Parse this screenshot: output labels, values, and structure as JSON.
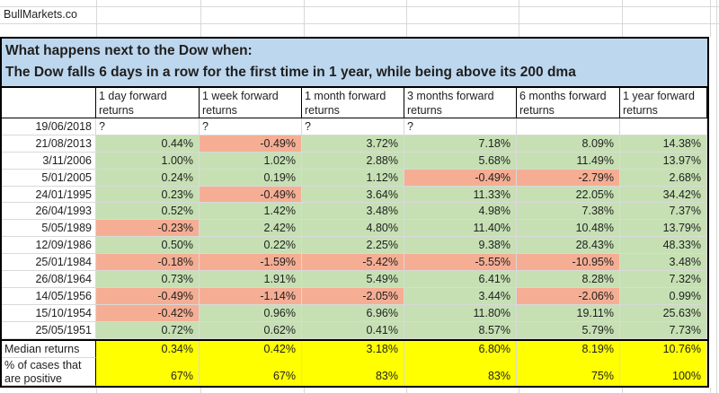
{
  "brand": "BullMarkets.co",
  "banner": {
    "line1": "What happens next to the Dow when:",
    "line2": "The Dow falls 6 days in a row for the first time in 1 year, while being above its 200 dma"
  },
  "table": {
    "columns": [
      "1 day forward returns",
      "1 week forward returns",
      "1 month forward returns",
      "3 months forward returns",
      "6 months forward returns",
      "1 year forward returns"
    ],
    "rows": [
      {
        "date": "19/06/2018",
        "values": [
          "?",
          "?",
          "?",
          "?",
          "",
          ""
        ]
      },
      {
        "date": "21/08/2013",
        "values": [
          "0.44%",
          "-0.49%",
          "3.72%",
          "7.18%",
          "8.09%",
          "14.38%"
        ]
      },
      {
        "date": "3/11/2006",
        "values": [
          "1.00%",
          "1.02%",
          "2.88%",
          "5.68%",
          "11.49%",
          "13.97%"
        ]
      },
      {
        "date": "5/01/2005",
        "values": [
          "0.24%",
          "0.19%",
          "1.12%",
          "-0.49%",
          "-2.79%",
          "2.68%"
        ]
      },
      {
        "date": "24/01/1995",
        "values": [
          "0.23%",
          "-0.49%",
          "3.64%",
          "11.33%",
          "22.05%",
          "34.42%"
        ]
      },
      {
        "date": "26/04/1993",
        "values": [
          "0.52%",
          "1.42%",
          "3.48%",
          "4.98%",
          "7.38%",
          "7.37%"
        ]
      },
      {
        "date": "5/05/1989",
        "values": [
          "-0.23%",
          "2.42%",
          "4.80%",
          "11.40%",
          "10.48%",
          "13.79%"
        ]
      },
      {
        "date": "12/09/1986",
        "values": [
          "0.50%",
          "0.22%",
          "2.25%",
          "9.38%",
          "28.43%",
          "48.33%"
        ]
      },
      {
        "date": "25/01/1984",
        "values": [
          "-0.18%",
          "-1.59%",
          "-5.42%",
          "-5.55%",
          "-10.95%",
          "3.48%"
        ]
      },
      {
        "date": "26/08/1964",
        "values": [
          "0.73%",
          "1.91%",
          "5.49%",
          "6.41%",
          "8.28%",
          "7.32%"
        ]
      },
      {
        "date": "14/05/1956",
        "values": [
          "-0.49%",
          "-1.14%",
          "-2.05%",
          "3.44%",
          "-2.06%",
          "0.99%"
        ]
      },
      {
        "date": "15/10/1954",
        "values": [
          "-0.42%",
          "0.96%",
          "6.96%",
          "11.80%",
          "19.11%",
          "25.63%"
        ]
      },
      {
        "date": "25/05/1951",
        "values": [
          "0.72%",
          "0.62%",
          "0.41%",
          "8.57%",
          "5.79%",
          "7.73%"
        ]
      }
    ],
    "summary": [
      {
        "label": "Median returns",
        "values": [
          "0.34%",
          "0.42%",
          "3.18%",
          "6.80%",
          "8.19%",
          "10.76%"
        ]
      },
      {
        "label": "% of cases that are positive",
        "values": [
          "67%",
          "67%",
          "83%",
          "83%",
          "75%",
          "100%"
        ]
      }
    ]
  },
  "colors": {
    "positive_fill": "#C6E0B4",
    "negative_fill": "#F5AE94",
    "summary_fill": "#FFFF00",
    "banner_fill": "#BDD7EE"
  }
}
